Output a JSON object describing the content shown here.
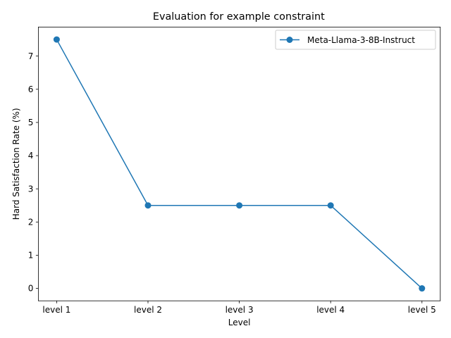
{
  "chart_data": {
    "type": "line",
    "title": "Evaluation for example constraint",
    "xlabel": "Level",
    "ylabel": "Hard Satisfaction Rate (%)",
    "categories": [
      "level 1",
      "level 2",
      "level 3",
      "level 4",
      "level 5"
    ],
    "series": [
      {
        "name": "Meta-Llama-3-8B-Instruct",
        "values": [
          7.5,
          2.5,
          2.5,
          2.5,
          0.0
        ],
        "color": "#1f77b4",
        "marker": "circle"
      }
    ],
    "ylim": [
      -0.375,
      7.875
    ],
    "yticks": [
      0,
      1,
      2,
      3,
      4,
      5,
      6,
      7
    ],
    "grid": false,
    "legend_position": "top-right"
  }
}
